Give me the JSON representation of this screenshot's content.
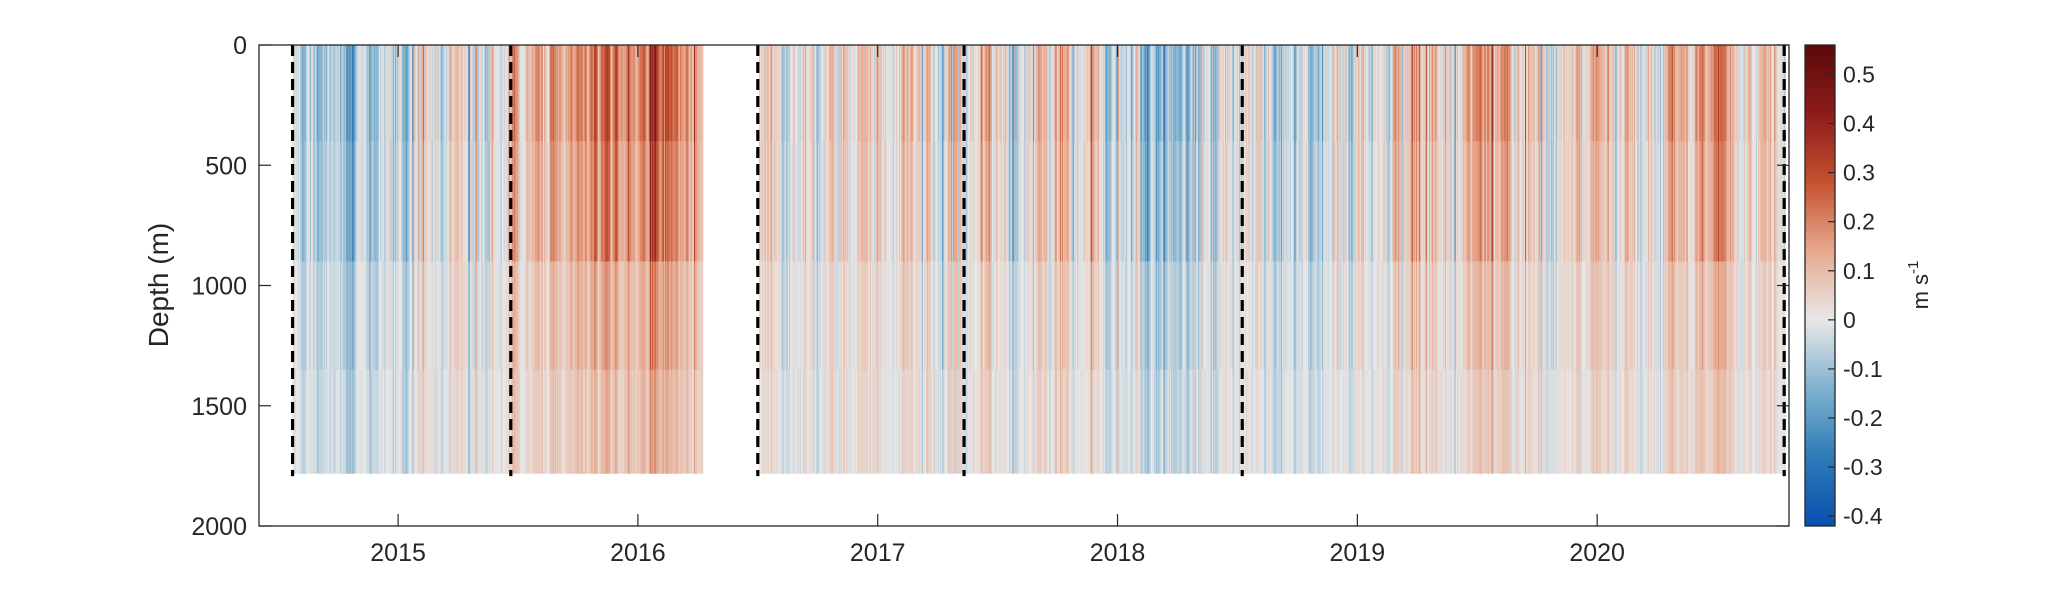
{
  "chart_data": {
    "type": "heatmap",
    "title": "",
    "xlabel": "",
    "ylabel": "Depth (m)",
    "colorbar_label": "m s",
    "colorbar_label_exponent": "-1",
    "x_tick_labels": [
      "2015",
      "2016",
      "2017",
      "2018",
      "2019",
      "2020"
    ],
    "x_ticks": [
      2015,
      2016,
      2017,
      2018,
      2019,
      2020
    ],
    "xlim": [
      2014.42,
      2020.8
    ],
    "y_tick_labels": [
      "0",
      "500",
      "1000",
      "1500",
      "2000"
    ],
    "y_ticks": [
      0,
      500,
      1000,
      1500,
      2000
    ],
    "ylim": [
      0,
      2000
    ],
    "y_reversed": true,
    "data_max_depth": 1780,
    "colorbar_tick_labels": [
      "0.5",
      "0.4",
      "0.3",
      "0.2",
      "0.1",
      "0",
      "-0.1",
      "-0.2",
      "-0.3",
      "-0.4"
    ],
    "colorbar_ticks": [
      0.5,
      0.4,
      0.3,
      0.2,
      0.1,
      0,
      -0.1,
      -0.2,
      -0.3,
      -0.4
    ],
    "clim": [
      -0.42,
      0.56
    ],
    "colormap": [
      "#0a4fb0",
      "#2c7bb6",
      "#7fb1cf",
      "#e8e8e8",
      "#e7a98f",
      "#c5522f",
      "#8e1b1b",
      "#5a0a0a"
    ],
    "deployment_boundaries": [
      2014.56,
      2015.47,
      2016.5,
      2017.36,
      2018.52,
      2020.78
    ],
    "data_gap": [
      2016.27,
      2016.5
    ],
    "grid": false,
    "legend": "none"
  }
}
